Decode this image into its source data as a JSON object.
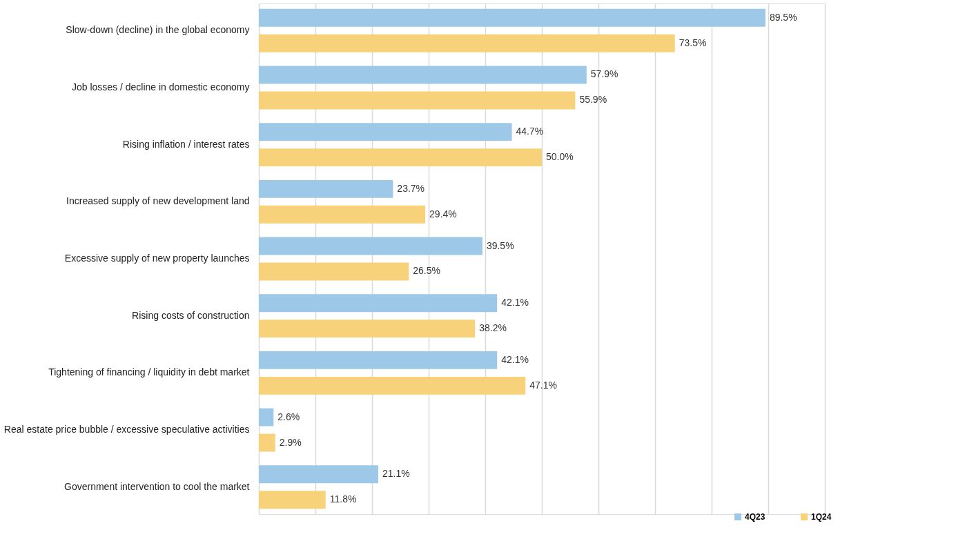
{
  "chart_data": {
    "type": "bar",
    "orientation": "horizontal",
    "categories": [
      "Slow-down (decline) in the global economy",
      "Job losses / decline in domestic economy",
      "Rising inflation / interest rates",
      "Increased supply of new development land",
      "Excessive supply of new property launches",
      "Rising costs of construction",
      "Tightening of financing / liquidity in debt market",
      "Real estate price bubble / excessive speculative activities",
      "Government intervention to cool the market"
    ],
    "series": [
      {
        "name": "4Q23",
        "color": "#9dc8e8",
        "values": [
          89.5,
          57.9,
          44.7,
          23.7,
          39.5,
          42.1,
          42.1,
          2.6,
          21.1
        ],
        "value_labels": [
          "89.5%",
          "57.9%",
          "44.7%",
          "23.7%",
          "39.5%",
          "42.1%",
          "42.1%",
          "2.6%",
          "21.1%"
        ]
      },
      {
        "name": "1Q24",
        "color": "#f7d27a",
        "values": [
          73.5,
          55.9,
          50.0,
          29.4,
          26.5,
          38.2,
          47.1,
          2.9,
          11.8
        ],
        "value_labels": [
          "73.5%",
          "55.9%",
          "50.0%",
          "29.4%",
          "26.5%",
          "38.2%",
          "47.1%",
          "2.9%",
          "11.8%"
        ]
      }
    ],
    "xlim": [
      0,
      100
    ],
    "xticks": [
      {
        "value": 0,
        "label": null
      },
      {
        "value": 10,
        "label": null
      },
      {
        "value": 20,
        "label": null
      },
      {
        "value": 30,
        "label": null
      },
      {
        "value": 40,
        "label": null
      },
      {
        "value": 50,
        "label": null
      },
      {
        "value": 60,
        "label": null
      },
      {
        "value": 70,
        "label": null
      },
      {
        "value": 80,
        "label": null
      },
      {
        "value": 90,
        "label": null
      },
      {
        "value": 100,
        "label": null
      }
    ],
    "grid": "x",
    "legend": "bottom right",
    "tick_labels": "y"
  }
}
